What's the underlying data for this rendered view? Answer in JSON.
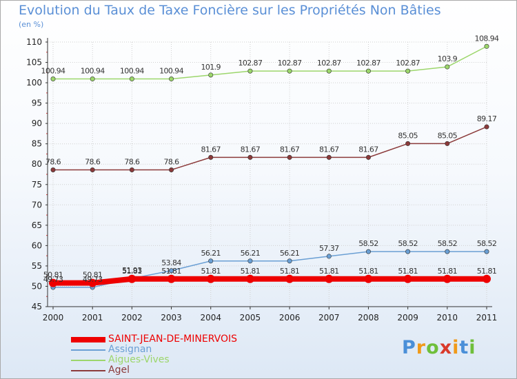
{
  "title": "Evolution du Taux de Taxe Foncière sur les Propriétés Non Bâties",
  "subtitle": "(en %)",
  "logo": {
    "text": "Proxiti",
    "letter_colors": [
      "#4a8fd8",
      "#f09a1a",
      "#6fbf3b",
      "#d93a2b",
      "#f09a1a",
      "#4a8fd8",
      "#6fbf3b"
    ]
  },
  "chart_data": {
    "type": "line",
    "title": "Evolution du Taux de Taxe Foncière sur les Propriétés Non Bâties",
    "ylabel": "(en %)",
    "x": [
      "2000",
      "2001",
      "2002",
      "2003",
      "2004",
      "2005",
      "2006",
      "2007",
      "2008",
      "2009",
      "2010",
      "2011"
    ],
    "ylim": [
      45,
      110
    ],
    "yticks": [
      45,
      50,
      55,
      60,
      65,
      70,
      75,
      80,
      85,
      90,
      95,
      100,
      105,
      110
    ],
    "grid": true,
    "legend_position": "bottom-left",
    "series": [
      {
        "name": "SAINT-JEAN-DE-MINERVOIS",
        "color": "#ee0000",
        "values": [
          50.81,
          50.81,
          51.81,
          51.81,
          51.81,
          51.81,
          51.81,
          51.81,
          51.81,
          51.81,
          51.81,
          51.81
        ],
        "labels": [
          "50.81",
          "50.81",
          "51.81",
          "51.81",
          "51.81",
          "51.81",
          "51.81",
          "51.81",
          "51.81",
          "51.81",
          "51.81",
          "51.81"
        ]
      },
      {
        "name": "Assignan",
        "color": "#6a9fd4",
        "values": [
          49.73,
          49.73,
          51.93,
          53.84,
          56.21,
          56.21,
          56.21,
          57.37,
          58.52,
          58.52,
          58.52,
          58.52
        ],
        "labels": [
          "49.73",
          "49.73",
          "51.93",
          "53.84",
          "56.21",
          "56.21",
          "56.21",
          "57.37",
          "58.52",
          "58.52",
          "58.52",
          "58.52"
        ]
      },
      {
        "name": "Aigues-Vives",
        "color": "#9cd66b",
        "values": [
          100.94,
          100.94,
          100.94,
          100.94,
          101.9,
          102.87,
          102.87,
          102.87,
          102.87,
          102.87,
          103.9,
          108.94
        ],
        "labels": [
          "100.94",
          "100.94",
          "100.94",
          "100.94",
          "101.9",
          "102.87",
          "102.87",
          "102.87",
          "102.87",
          "102.87",
          "103.9",
          "108.94"
        ]
      },
      {
        "name": "Agel",
        "color": "#8b3a3a",
        "values": [
          78.6,
          78.6,
          78.6,
          78.6,
          81.67,
          81.67,
          81.67,
          81.67,
          81.67,
          85.05,
          85.05,
          89.17
        ],
        "labels": [
          "78.6",
          "78.6",
          "78.6",
          "78.6",
          "81.67",
          "81.67",
          "81.67",
          "81.67",
          "81.67",
          "85.05",
          "85.05",
          "89.17"
        ]
      }
    ]
  }
}
